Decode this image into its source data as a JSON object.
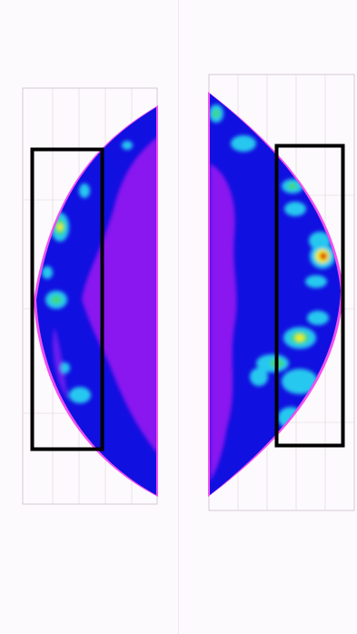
{
  "figure": {
    "left_panel": {
      "caption_line1": "",
      "caption_line2": "",
      "x_ticks": [
        "",
        "",
        "",
        ""
      ],
      "y_ticks": [
        "",
        "",
        "",
        "",
        "",
        "",
        ""
      ]
    },
    "right_panel": {
      "caption_line1": "",
      "caption_line2": "",
      "x_ticks": [
        "",
        "",
        "",
        ""
      ],
      "y_ticks": [
        "",
        "",
        "",
        "",
        "",
        ""
      ]
    },
    "colors": {
      "background": "#fbf7fb",
      "dark_blue": "#1010e0",
      "purple": "#8a18f0",
      "cyan": "#28c8f0",
      "green": "#40d880",
      "yellow": "#f0f000",
      "red": "#e01010",
      "magenta": "#f040f0",
      "box": "#000000"
    }
  }
}
